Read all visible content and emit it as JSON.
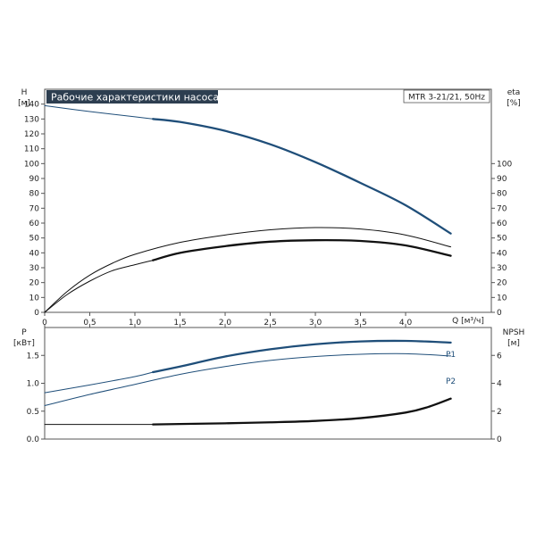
{
  "chart_data": [
    {
      "type": "line",
      "title": "Рабочие характеристики насоса",
      "model_label": "MTR 3-21/21, 50Hz",
      "xlabel": "Q [м³/ч]",
      "ylabel": "H",
      "ylabel_unit": "[м]",
      "y2label": "eta",
      "y2label_unit": "[%]",
      "xlim": [
        0,
        4.95
      ],
      "ylim": [
        0,
        150
      ],
      "y2lim": [
        0,
        150
      ],
      "x_ticks": [
        0,
        0.5,
        1.0,
        1.5,
        2.0,
        2.5,
        3.0,
        3.5,
        4.0
      ],
      "x_tick_labels": [
        "0",
        "0.5",
        "1.0",
        "1.5",
        "2.0",
        "2.5",
        "3.0",
        "3.5",
        "4.0"
      ],
      "y_ticks": [
        0,
        10,
        20,
        30,
        40,
        50,
        60,
        70,
        80,
        90,
        100,
        110,
        120,
        130,
        140
      ],
      "y2_ticks": [
        0,
        10,
        20,
        30,
        40,
        50,
        60,
        70,
        80,
        90,
        100
      ],
      "series": [
        {
          "axis": "H",
          "color": "#1f4e79",
          "style": "thin",
          "x": [
            0,
            0.5,
            1.0,
            1.2
          ],
          "values": [
            139,
            135,
            131.5,
            130
          ]
        },
        {
          "axis": "H",
          "color": "#1f4e79",
          "style": "bold",
          "x": [
            1.2,
            1.5,
            2.0,
            2.5,
            3.0,
            3.5,
            4.0,
            4.5
          ],
          "values": [
            130,
            128,
            122,
            113,
            101,
            87,
            72,
            53
          ]
        },
        {
          "axis": "eta",
          "color": "#111111",
          "style": "thin",
          "x": [
            0,
            0.25,
            0.5,
            0.75,
            1.0,
            1.5,
            2.0,
            2.5,
            3.0,
            3.5,
            4.0,
            4.5
          ],
          "values": [
            0,
            14,
            25,
            33,
            39,
            47,
            52,
            55.5,
            57,
            56,
            52,
            44
          ]
        },
        {
          "axis": "eta",
          "color": "#111111",
          "style": "thin",
          "x": [
            0,
            0.25,
            0.5,
            0.75,
            1.0,
            1.2
          ],
          "values": [
            0,
            12,
            21,
            28,
            32,
            35
          ]
        },
        {
          "axis": "eta",
          "color": "#111111",
          "style": "bold",
          "x": [
            1.2,
            1.5,
            2.0,
            2.5,
            3.0,
            3.5,
            4.0,
            4.5
          ],
          "values": [
            35,
            40,
            44.5,
            47.5,
            48.5,
            48,
            45,
            38
          ]
        }
      ]
    },
    {
      "type": "line",
      "ylabel": "P",
      "ylabel_unit": "[кВт]",
      "y2label": "NPSH",
      "y2label_unit": "[м]",
      "xlim": [
        0,
        4.95
      ],
      "ylim": [
        0,
        2.0
      ],
      "y2lim": [
        0,
        8
      ],
      "y_ticks": [
        0,
        0.5,
        1.0,
        1.5
      ],
      "y_tick_labels": [
        "0.0",
        "0.5",
        "1.0",
        "1.5"
      ],
      "y2_ticks": [
        0,
        2,
        4,
        6
      ],
      "series": [
        {
          "name": "P1",
          "axis": "P",
          "color": "#1f4e79",
          "style": "thin",
          "x": [
            0,
            0.5,
            1.0,
            1.2
          ],
          "values": [
            0.83,
            0.97,
            1.12,
            1.2
          ]
        },
        {
          "name": "P1",
          "axis": "P",
          "color": "#1f4e79",
          "style": "bold",
          "x": [
            1.2,
            1.5,
            2.0,
            2.5,
            3.0,
            3.5,
            4.0,
            4.5
          ],
          "values": [
            1.2,
            1.3,
            1.48,
            1.61,
            1.7,
            1.75,
            1.76,
            1.73
          ]
        },
        {
          "name": "P2",
          "axis": "P",
          "color": "#1f4e79",
          "style": "thin",
          "x": [
            0,
            0.5,
            1.0,
            1.5,
            2.0,
            2.5,
            3.0,
            3.5,
            4.0,
            4.5
          ],
          "values": [
            0.6,
            0.8,
            0.98,
            1.16,
            1.3,
            1.41,
            1.48,
            1.52,
            1.53,
            1.49
          ]
        },
        {
          "axis": "NPSH",
          "color": "#111111",
          "style": "thin",
          "x": [
            0,
            0.5,
            1.0,
            1.2
          ],
          "values": [
            1.05,
            1.05,
            1.05,
            1.05
          ]
        },
        {
          "axis": "NPSH",
          "color": "#111111",
          "style": "bold",
          "x": [
            1.2,
            1.5,
            2.0,
            2.5,
            3.0,
            3.5,
            4.0,
            4.25,
            4.5
          ],
          "values": [
            1.05,
            1.08,
            1.13,
            1.2,
            1.3,
            1.5,
            1.9,
            2.3,
            2.9
          ]
        }
      ]
    }
  ]
}
